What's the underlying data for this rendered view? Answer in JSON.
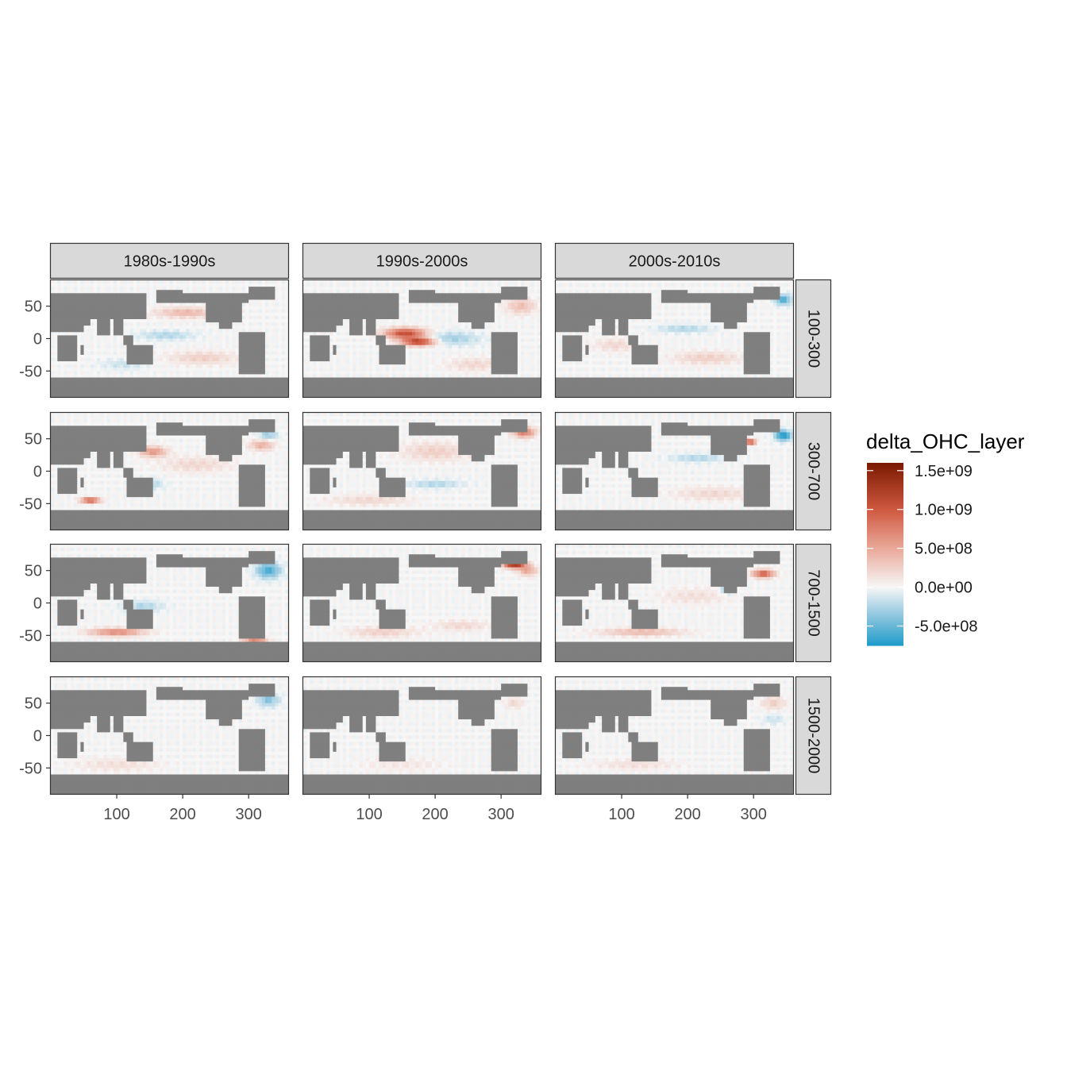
{
  "chart_data": {
    "type": "heatmap",
    "title": "",
    "xlabel": "",
    "ylabel": "",
    "facet_columns": [
      "1980s-1990s",
      "1990s-2000s",
      "2000s-2010s"
    ],
    "facet_rows": [
      "100-300",
      "300-700",
      "700-1500",
      "1500-2000"
    ],
    "xlim": [
      0,
      360
    ],
    "ylim": [
      -90,
      90
    ],
    "x_ticks": [
      100,
      200,
      300
    ],
    "x_tick_labels": [
      "100",
      "200",
      "300"
    ],
    "y_ticks": [
      50,
      0,
      -50
    ],
    "y_tick_labels": [
      "50",
      "0",
      "-50"
    ],
    "grid": false,
    "legend": {
      "title": "delta_OHC_layer",
      "position": "right",
      "limits": [
        -750000000.0,
        1600000000.0
      ],
      "breaks": [
        1500000000.0,
        1000000000.0,
        500000000.0,
        0,
        -500000000.0
      ],
      "labels": [
        "1.5e+09",
        "1.0e+09",
        "5.0e+08",
        "0.0e+00",
        "-5.0e+08"
      ],
      "colors": {
        "low": "#1f9bc9",
        "mid": "#f7f7f7",
        "high": "#7a1a00",
        "land": "#7f7f7f"
      }
    },
    "panels": [
      {
        "col": "1980s-1990s",
        "row": "100-300",
        "features": [
          {
            "lon": 205,
            "lat": 40,
            "value": 400000000.0,
            "rlon": 45,
            "rlat": 8
          },
          {
            "lon": 175,
            "lat": 5,
            "value": -250000000.0,
            "rlon": 40,
            "rlat": 7
          },
          {
            "lon": 230,
            "lat": -30,
            "value": 250000000.0,
            "rlon": 50,
            "rlat": 10
          },
          {
            "lon": 110,
            "lat": -40,
            "value": -150000000.0,
            "rlon": 35,
            "rlat": 8
          }
        ]
      },
      {
        "col": "1990s-2000s",
        "row": "100-300",
        "features": [
          {
            "lon": 155,
            "lat": 8,
            "value": 1100000000.0,
            "rlon": 30,
            "rlat": 8
          },
          {
            "lon": 175,
            "lat": -5,
            "value": 1200000000.0,
            "rlon": 25,
            "rlat": 6
          },
          {
            "lon": 225,
            "lat": 0,
            "value": -300000000.0,
            "rlon": 40,
            "rlat": 10
          },
          {
            "lon": 330,
            "lat": 50,
            "value": 350000000.0,
            "rlon": 22,
            "rlat": 12
          },
          {
            "lon": 260,
            "lat": -40,
            "value": 200000000.0,
            "rlon": 40,
            "rlat": 10
          }
        ]
      },
      {
        "col": "2000s-2010s",
        "row": "100-300",
        "features": [
          {
            "lon": 345,
            "lat": 60,
            "value": -600000000.0,
            "rlon": 12,
            "rlat": 8
          },
          {
            "lon": 195,
            "lat": 15,
            "value": -250000000.0,
            "rlon": 40,
            "rlat": 6
          },
          {
            "lon": 230,
            "lat": -30,
            "value": 250000000.0,
            "rlon": 50,
            "rlat": 10
          },
          {
            "lon": 90,
            "lat": -10,
            "value": 200000000.0,
            "rlon": 30,
            "rlat": 10
          }
        ]
      },
      {
        "col": "1980s-1990s",
        "row": "300-700",
        "features": [
          {
            "lon": 155,
            "lat": 30,
            "value": 600000000.0,
            "rlon": 20,
            "rlat": 8
          },
          {
            "lon": 60,
            "lat": -45,
            "value": 1100000000.0,
            "rlon": 14,
            "rlat": 4
          },
          {
            "lon": 320,
            "lat": 40,
            "value": 450000000.0,
            "rlon": 18,
            "rlat": 8
          },
          {
            "lon": 330,
            "lat": 55,
            "value": -350000000.0,
            "rlon": 14,
            "rlat": 6
          },
          {
            "lon": 150,
            "lat": -20,
            "value": -250000000.0,
            "rlon": 20,
            "rlat": 8
          },
          {
            "lon": 220,
            "lat": 10,
            "value": 200000000.0,
            "rlon": 50,
            "rlat": 12
          }
        ]
      },
      {
        "col": "1990s-2000s",
        "row": "300-700",
        "features": [
          {
            "lon": 335,
            "lat": 60,
            "value": 800000000.0,
            "rlon": 16,
            "rlat": 8
          },
          {
            "lon": 200,
            "lat": -20,
            "value": -250000000.0,
            "rlon": 40,
            "rlat": 6
          },
          {
            "lon": 200,
            "lat": 30,
            "value": 250000000.0,
            "rlon": 50,
            "rlat": 14
          },
          {
            "lon": 100,
            "lat": -45,
            "value": 200000000.0,
            "rlon": 60,
            "rlat": 8
          }
        ]
      },
      {
        "col": "2000s-2010s",
        "row": "300-700",
        "features": [
          {
            "lon": 295,
            "lat": 45,
            "value": 1200000000.0,
            "rlon": 8,
            "rlat": 4
          },
          {
            "lon": 345,
            "lat": 55,
            "value": -800000000.0,
            "rlon": 12,
            "rlat": 8
          },
          {
            "lon": 215,
            "lat": 20,
            "value": -250000000.0,
            "rlon": 40,
            "rlat": 6
          },
          {
            "lon": 240,
            "lat": -35,
            "value": 200000000.0,
            "rlon": 60,
            "rlat": 10
          }
        ]
      },
      {
        "col": "1980s-1990s",
        "row": "700-1500",
        "features": [
          {
            "lon": 330,
            "lat": 50,
            "value": -600000000.0,
            "rlon": 18,
            "rlat": 12
          },
          {
            "lon": 100,
            "lat": -45,
            "value": 700000000.0,
            "rlon": 40,
            "rlat": 6
          },
          {
            "lon": 310,
            "lat": -60,
            "value": 800000000.0,
            "rlon": 18,
            "rlat": 6
          },
          {
            "lon": 140,
            "lat": -5,
            "value": -250000000.0,
            "rlon": 30,
            "rlat": 8
          }
        ]
      },
      {
        "col": "1990s-2000s",
        "row": "700-1500",
        "features": [
          {
            "lon": 320,
            "lat": 60,
            "value": 1500000000.0,
            "rlon": 16,
            "rlat": 6
          },
          {
            "lon": 340,
            "lat": 50,
            "value": 500000000.0,
            "rlon": 14,
            "rlat": 8
          },
          {
            "lon": 120,
            "lat": -45,
            "value": 250000000.0,
            "rlon": 50,
            "rlat": 8
          },
          {
            "lon": 240,
            "lat": -35,
            "value": 200000000.0,
            "rlon": 40,
            "rlat": 8
          }
        ]
      },
      {
        "col": "2000s-2010s",
        "row": "700-1500",
        "features": [
          {
            "lon": 315,
            "lat": 45,
            "value": 1000000000.0,
            "rlon": 16,
            "rlat": 6
          },
          {
            "lon": 260,
            "lat": 20,
            "value": -600000000.0,
            "rlon": 8,
            "rlat": 6
          },
          {
            "lon": 130,
            "lat": -45,
            "value": 400000000.0,
            "rlon": 60,
            "rlat": 6
          },
          {
            "lon": 210,
            "lat": 10,
            "value": 150000000.0,
            "rlon": 50,
            "rlat": 12
          }
        ]
      },
      {
        "col": "1980s-1990s",
        "row": "1500-2000",
        "features": [
          {
            "lon": 330,
            "lat": 55,
            "value": -400000000.0,
            "rlon": 16,
            "rlat": 10
          },
          {
            "lon": 100,
            "lat": -45,
            "value": 150000000.0,
            "rlon": 60,
            "rlat": 10
          }
        ]
      },
      {
        "col": "1990s-2000s",
        "row": "1500-2000",
        "features": [
          {
            "lon": 320,
            "lat": 50,
            "value": 200000000.0,
            "rlon": 14,
            "rlat": 8
          },
          {
            "lon": 150,
            "lat": -45,
            "value": 100000000.0,
            "rlon": 60,
            "rlat": 10
          }
        ]
      },
      {
        "col": "2000s-2010s",
        "row": "1500-2000",
        "features": [
          {
            "lon": 330,
            "lat": 50,
            "value": 250000000.0,
            "rlon": 18,
            "rlat": 10
          },
          {
            "lon": 330,
            "lat": 25,
            "value": -150000000.0,
            "rlon": 16,
            "rlat": 8
          },
          {
            "lon": 120,
            "lat": -45,
            "value": 150000000.0,
            "rlon": 60,
            "rlat": 8
          }
        ]
      }
    ]
  }
}
